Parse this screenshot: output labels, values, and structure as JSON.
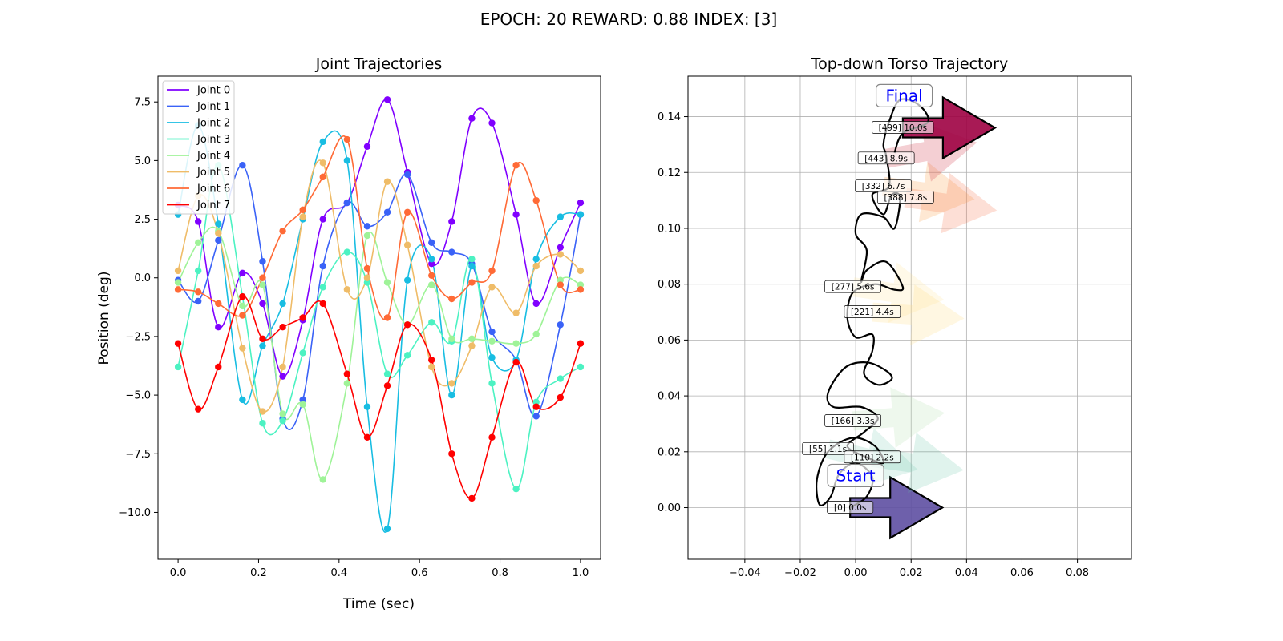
{
  "suptitle": "EPOCH:  20 REWARD:   0.88 INDEX: [3]",
  "chart_data": [
    {
      "type": "line",
      "title": "Joint Trajectories",
      "xlabel": "Time (sec)",
      "ylabel": "Position (deg)",
      "xlim": [
        -0.05,
        1.05
      ],
      "ylim": [
        -12.0,
        8.6
      ],
      "xticks": [
        0.0,
        0.2,
        0.4,
        0.6,
        0.8,
        1.0
      ],
      "xtick_labels": [
        "0.0",
        "0.2",
        "0.4",
        "0.6",
        "0.8",
        "1.0"
      ],
      "yticks": [
        -10.0,
        -7.5,
        -5.0,
        -2.5,
        0.0,
        2.5,
        5.0,
        7.5
      ],
      "ytick_labels": [
        "−10.0",
        "−7.5",
        "−5.0",
        "−2.5",
        "0.0",
        "2.5",
        "5.0",
        "7.5"
      ],
      "grid": false,
      "legend": "upper left",
      "x": [
        0.0,
        0.05,
        0.1,
        0.16,
        0.21,
        0.26,
        0.31,
        0.36,
        0.42,
        0.47,
        0.52,
        0.57,
        0.63,
        0.68,
        0.73,
        0.78,
        0.84,
        0.89,
        0.95,
        1.0
      ],
      "series": [
        {
          "name": "Joint 0",
          "color": "#8000ff",
          "values": [
            3.1,
            2.4,
            -2.1,
            0.2,
            -1.1,
            -4.2,
            -1.8,
            2.5,
            3.2,
            5.6,
            7.6,
            4.5,
            0.6,
            2.4,
            6.8,
            6.6,
            2.7,
            -1.1,
            1.3,
            3.2
          ]
        },
        {
          "name": "Joint 1",
          "color": "#3a62f7",
          "values": [
            -0.1,
            -1.0,
            1.6,
            4.8,
            0.7,
            -6.0,
            -5.2,
            0.5,
            3.2,
            2.2,
            2.8,
            4.4,
            1.5,
            1.1,
            0.6,
            -2.3,
            -3.5,
            -5.9,
            -2.0,
            2.7
          ]
        },
        {
          "name": "Joint 2",
          "color": "#18bde2",
          "values": [
            2.7,
            6.5,
            2.3,
            -5.2,
            -2.9,
            -1.1,
            2.5,
            5.8,
            5.0,
            -5.5,
            -10.7,
            -0.1,
            0.8,
            -5.0,
            0.5,
            -3.4,
            -3.5,
            0.8,
            2.6,
            2.7
          ]
        },
        {
          "name": "Joint 3",
          "color": "#4cf2c2",
          "values": [
            -3.8,
            0.3,
            4.8,
            -0.8,
            -6.2,
            -6.1,
            -3.2,
            -0.4,
            1.1,
            -0.2,
            -4.1,
            -3.3,
            -1.9,
            -2.7,
            0.8,
            -4.5,
            -9.0,
            -5.3,
            -4.3,
            -3.8
          ]
        },
        {
          "name": "Joint 4",
          "color": "#9ff398",
          "values": [
            -0.2,
            1.5,
            2.0,
            -1.2,
            -0.3,
            -5.8,
            -5.4,
            -8.6,
            -4.5,
            1.8,
            -0.2,
            -2.0,
            -0.3,
            -2.6,
            -2.6,
            -2.7,
            -2.8,
            -2.4,
            -0.1,
            -0.3
          ]
        },
        {
          "name": "Joint 5",
          "color": "#efbc68",
          "values": [
            0.3,
            3.5,
            1.9,
            -3.0,
            -5.7,
            -3.8,
            2.6,
            4.9,
            -0.5,
            0.0,
            4.1,
            1.4,
            -3.8,
            -4.5,
            -2.9,
            -0.4,
            -1.5,
            0.5,
            1.0,
            0.3
          ]
        },
        {
          "name": "Joint 6",
          "color": "#ff6a36",
          "values": [
            -0.5,
            -0.6,
            -1.1,
            -1.6,
            0.0,
            2.0,
            2.9,
            4.3,
            5.9,
            0.4,
            -1.7,
            2.8,
            0.1,
            -0.9,
            -0.2,
            0.3,
            4.8,
            3.3,
            -0.3,
            -0.5
          ]
        },
        {
          "name": "Joint 7",
          "color": "#ff0000",
          "values": [
            -2.8,
            -5.6,
            -3.8,
            -0.8,
            -2.6,
            -2.1,
            -1.7,
            -1.1,
            -4.1,
            -6.8,
            -4.6,
            -2.0,
            -3.5,
            -7.5,
            -9.4,
            -6.8,
            -3.6,
            -5.5,
            -5.1,
            -2.8
          ]
        }
      ]
    },
    {
      "type": "scatter",
      "title": "Top-down Torso Trajectory",
      "xlabel": "",
      "ylabel": "",
      "xlim": [
        -0.0605,
        0.0995
      ],
      "ylim": [
        -0.0185,
        0.1545
      ],
      "xticks": [
        -0.04,
        -0.02,
        0.0,
        0.02,
        0.04,
        0.06,
        0.08
      ],
      "xtick_labels": [
        "−0.04",
        "−0.02",
        "0.00",
        "0.02",
        "0.04",
        "0.06",
        "0.08"
      ],
      "yticks": [
        0.0,
        0.02,
        0.04,
        0.06,
        0.08,
        0.1,
        0.12,
        0.14
      ],
      "ytick_labels": [
        "0.00",
        "0.02",
        "0.04",
        "0.06",
        "0.08",
        "0.10",
        "0.12",
        "0.14"
      ],
      "grid": true,
      "path": [
        [
          -0.002,
          0.0
        ],
        [
          0.004,
          0.004
        ],
        [
          0.006,
          0.011
        ],
        [
          0.0,
          0.016
        ],
        [
          -0.006,
          0.012
        ],
        [
          -0.009,
          0.004
        ],
        [
          -0.013,
          0.001
        ],
        [
          -0.014,
          0.01
        ],
        [
          -0.01,
          0.02
        ],
        [
          -0.001,
          0.025
        ],
        [
          0.007,
          0.022
        ],
        [
          0.01,
          0.016
        ],
        [
          0.004,
          0.018
        ],
        [
          -0.003,
          0.022
        ],
        [
          0.003,
          0.027
        ],
        [
          0.008,
          0.032
        ],
        [
          0.002,
          0.036
        ],
        [
          -0.008,
          0.036
        ],
        [
          -0.01,
          0.041
        ],
        [
          -0.004,
          0.05
        ],
        [
          0.004,
          0.052
        ],
        [
          0.011,
          0.049
        ],
        [
          0.013,
          0.046
        ],
        [
          0.008,
          0.044
        ],
        [
          0.003,
          0.048
        ],
        [
          0.006,
          0.056
        ],
        [
          0.006,
          0.062
        ],
        [
          0.0,
          0.061
        ],
        [
          -0.003,
          0.068
        ],
        [
          -0.001,
          0.077
        ],
        [
          0.007,
          0.08
        ],
        [
          0.014,
          0.078
        ],
        [
          0.017,
          0.079
        ],
        [
          0.011,
          0.088
        ],
        [
          0.004,
          0.085
        ],
        [
          0.002,
          0.081
        ],
        [
          0.004,
          0.092
        ],
        [
          0.0,
          0.098
        ],
        [
          0.002,
          0.105
        ],
        [
          0.01,
          0.104
        ],
        [
          0.014,
          0.1
        ],
        [
          0.016,
          0.111
        ],
        [
          0.013,
          0.112
        ],
        [
          0.01,
          0.105
        ],
        [
          0.006,
          0.112
        ],
        [
          0.012,
          0.115
        ],
        [
          0.011,
          0.126
        ],
        [
          0.01,
          0.13
        ],
        [
          0.012,
          0.138
        ],
        [
          0.016,
          0.146
        ],
        [
          0.023,
          0.144
        ],
        [
          0.026,
          0.138
        ],
        [
          0.017,
          0.134
        ],
        [
          0.014,
          0.127
        ]
      ],
      "markers": [
        {
          "label": "[0] 0.0s",
          "x": -0.002,
          "y": 0.0,
          "heading_deg": 0,
          "color": "#5e4fa2",
          "alpha": 0.9
        },
        {
          "label": "[55] 1.1s",
          "x": -0.01,
          "y": 0.021,
          "heading_deg": -13,
          "color": "#66c2a5",
          "alpha": 0.18
        },
        {
          "label": "[110] 2.2s",
          "x": 0.006,
          "y": 0.018,
          "heading_deg": -8,
          "color": "#66c2a5",
          "alpha": 0.2
        },
        {
          "label": "[166] 3.3s",
          "x": -0.001,
          "y": 0.031,
          "heading_deg": 5,
          "color": "#abdda4",
          "alpha": 0.2
        },
        {
          "label": "[221] 4.4s",
          "x": 0.006,
          "y": 0.07,
          "heading_deg": -4,
          "color": "#fee08b",
          "alpha": 0.25
        },
        {
          "label": "[277] 5.6s",
          "x": -0.001,
          "y": 0.079,
          "heading_deg": -8,
          "color": "#fee08b",
          "alpha": 0.2
        },
        {
          "label": "[332] 6.7s",
          "x": 0.01,
          "y": 0.115,
          "heading_deg": -8,
          "color": "#fdae61",
          "alpha": 0.28
        },
        {
          "label": "[388] 7.8s",
          "x": 0.018,
          "y": 0.111,
          "heading_deg": -8,
          "color": "#f46d43",
          "alpha": 0.22
        },
        {
          "label": "[443] 8.9s",
          "x": 0.011,
          "y": 0.125,
          "heading_deg": 10,
          "color": "#d53e4f",
          "alpha": 0.25
        },
        {
          "label": "[499] 10.0s",
          "x": 0.017,
          "y": 0.136,
          "heading_deg": 0,
          "color": "#9e0142",
          "alpha": 0.9
        }
      ],
      "start_label": "Start",
      "final_label": "Final"
    }
  ]
}
